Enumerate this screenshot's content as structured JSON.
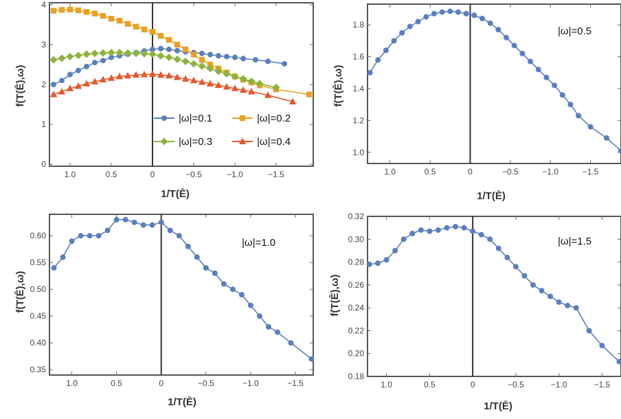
{
  "colors": {
    "blue": "#5b7fbd",
    "orange": "#e9a125",
    "green": "#8db33d",
    "red": "#e35a2d",
    "axis": "#555555",
    "zero_line": "#333333"
  },
  "chart_data": [
    {
      "type": "line",
      "panel": "top-left",
      "xlabel": "1/T(Ē)",
      "ylabel": "f(T(Ē),ω)",
      "x_reversed": true,
      "xlim": [
        1.25,
        -1.95
      ],
      "ylim": [
        -0.05,
        4.05
      ],
      "xticks": [
        1.0,
        0.5,
        0,
        -0.5,
        -1.0,
        -1.5
      ],
      "xtick_labels": [
        "1.0",
        "0.5",
        "0",
        "−0.5",
        "−1.0",
        "−1.5"
      ],
      "yticks": [
        0,
        1,
        2,
        3,
        4
      ],
      "ytick_labels": [
        "0",
        "1",
        "2",
        "3",
        "4"
      ],
      "legend_position": "bottom-right",
      "series": [
        {
          "name": "|ω|=0.1",
          "color": "#5b7fbd",
          "marker": "circle",
          "x": [
            1.2,
            1.1,
            1.0,
            0.9,
            0.8,
            0.7,
            0.6,
            0.5,
            0.4,
            0.3,
            0.2,
            0.1,
            0.0,
            -0.1,
            -0.2,
            -0.3,
            -0.4,
            -0.5,
            -0.6,
            -0.7,
            -0.8,
            -0.9,
            -1.0,
            -1.1,
            -1.25,
            -1.4,
            -1.6
          ],
          "y": [
            2.0,
            2.1,
            2.25,
            2.35,
            2.45,
            2.55,
            2.6,
            2.68,
            2.72,
            2.76,
            2.8,
            2.84,
            2.88,
            2.9,
            2.88,
            2.85,
            2.82,
            2.8,
            2.78,
            2.75,
            2.72,
            2.7,
            2.68,
            2.65,
            2.62,
            2.58,
            2.52
          ]
        },
        {
          "name": "|ω|=0.2",
          "color": "#e9a125",
          "marker": "square",
          "x": [
            1.2,
            1.1,
            1.0,
            0.9,
            0.8,
            0.7,
            0.6,
            0.5,
            0.4,
            0.3,
            0.2,
            0.1,
            0.0,
            -0.1,
            -0.2,
            -0.3,
            -0.4,
            -0.5,
            -0.6,
            -0.7,
            -0.8,
            -0.9,
            -1.0,
            -1.1,
            -1.2,
            -1.3,
            -1.5,
            -1.9
          ],
          "y": [
            3.85,
            3.87,
            3.88,
            3.86,
            3.82,
            3.78,
            3.72,
            3.65,
            3.6,
            3.52,
            3.45,
            3.38,
            3.32,
            3.22,
            3.12,
            3.0,
            2.88,
            2.75,
            2.62,
            2.5,
            2.4,
            2.3,
            2.2,
            2.12,
            2.05,
            1.98,
            1.88,
            1.75
          ]
        },
        {
          "name": "|ω|=0.3",
          "color": "#8db33d",
          "marker": "diamond",
          "x": [
            1.2,
            1.1,
            1.0,
            0.9,
            0.8,
            0.7,
            0.6,
            0.5,
            0.4,
            0.3,
            0.2,
            0.1,
            0.0,
            -0.1,
            -0.2,
            -0.3,
            -0.4,
            -0.5,
            -0.6,
            -0.7,
            -0.8,
            -0.9,
            -1.0,
            -1.1,
            -1.2,
            -1.3,
            -1.5
          ],
          "y": [
            2.62,
            2.66,
            2.7,
            2.73,
            2.76,
            2.78,
            2.79,
            2.8,
            2.8,
            2.79,
            2.78,
            2.77,
            2.76,
            2.72,
            2.68,
            2.63,
            2.58,
            2.52,
            2.46,
            2.4,
            2.33,
            2.27,
            2.2,
            2.14,
            2.08,
            2.02,
            1.93
          ]
        },
        {
          "name": "|ω|=0.4",
          "color": "#e35a2d",
          "marker": "triangle",
          "x": [
            1.2,
            1.1,
            1.0,
            0.9,
            0.8,
            0.7,
            0.6,
            0.5,
            0.4,
            0.3,
            0.2,
            0.1,
            0.0,
            -0.1,
            -0.2,
            -0.3,
            -0.4,
            -0.5,
            -0.6,
            -0.7,
            -0.8,
            -0.9,
            -1.0,
            -1.1,
            -1.2,
            -1.4,
            -1.7
          ],
          "y": [
            1.75,
            1.82,
            1.9,
            1.96,
            2.02,
            2.07,
            2.12,
            2.16,
            2.2,
            2.22,
            2.24,
            2.25,
            2.26,
            2.24,
            2.22,
            2.18,
            2.14,
            2.1,
            2.06,
            2.02,
            1.98,
            1.94,
            1.9,
            1.86,
            1.82,
            1.73,
            1.57
          ]
        }
      ]
    },
    {
      "type": "line",
      "panel": "top-right",
      "xlabel": "1/T(Ē)",
      "ylabel": "f(T(Ē),ω)",
      "annotation": "|ω|=0.5",
      "x_reversed": true,
      "xlim": [
        1.28,
        -1.88
      ],
      "ylim": [
        0.93,
        1.93
      ],
      "xticks": [
        1.0,
        0.5,
        0,
        -0.5,
        -1.0,
        -1.5
      ],
      "xtick_labels": [
        "1.0",
        "0.5",
        "0",
        "−0.5",
        "−1.0",
        "−1.5"
      ],
      "yticks": [
        1.0,
        1.2,
        1.4,
        1.6,
        1.8
      ],
      "ytick_labels": [
        "1.0",
        "1.2",
        "1.4",
        "1.6",
        "1.8"
      ],
      "series": [
        {
          "color": "#5b7fbd",
          "marker": "circle",
          "x": [
            1.25,
            1.15,
            1.05,
            0.95,
            0.85,
            0.75,
            0.65,
            0.55,
            0.45,
            0.35,
            0.25,
            0.15,
            0.05,
            -0.05,
            -0.15,
            -0.25,
            -0.35,
            -0.45,
            -0.55,
            -0.65,
            -0.75,
            -0.85,
            -0.95,
            -1.05,
            -1.15,
            -1.25,
            -1.35,
            -1.5,
            -1.7,
            -1.88
          ],
          "y": [
            1.5,
            1.58,
            1.64,
            1.7,
            1.75,
            1.79,
            1.82,
            1.85,
            1.87,
            1.88,
            1.885,
            1.88,
            1.87,
            1.86,
            1.84,
            1.81,
            1.77,
            1.72,
            1.67,
            1.62,
            1.57,
            1.52,
            1.47,
            1.42,
            1.36,
            1.3,
            1.23,
            1.16,
            1.09,
            1.01
          ]
        }
      ]
    },
    {
      "type": "line",
      "panel": "bottom-left",
      "xlabel": "1/T(Ē)",
      "ylabel": "f(T(Ē),ω)",
      "annotation": "|ω|=1.0",
      "x_reversed": true,
      "xlim": [
        1.25,
        -1.7
      ],
      "ylim": [
        0.34,
        0.64
      ],
      "xticks": [
        1.0,
        0.5,
        0,
        -0.5,
        -1.0,
        -1.5
      ],
      "xtick_labels": [
        "1.0",
        "0.5",
        "0",
        "−0.5",
        "−1.0",
        "−1.5"
      ],
      "yticks": [
        0.35,
        0.4,
        0.45,
        0.5,
        0.55,
        0.6
      ],
      "ytick_labels": [
        "0.35",
        "0.40",
        "0.45",
        "0.50",
        "0.55",
        "0.60"
      ],
      "series": [
        {
          "color": "#5b7fbd",
          "marker": "circle",
          "x": [
            1.2,
            1.1,
            1.0,
            0.9,
            0.8,
            0.7,
            0.6,
            0.5,
            0.4,
            0.3,
            0.2,
            0.1,
            0.0,
            -0.1,
            -0.2,
            -0.3,
            -0.4,
            -0.5,
            -0.6,
            -0.7,
            -0.8,
            -0.9,
            -1.0,
            -1.1,
            -1.2,
            -1.3,
            -1.45,
            -1.68
          ],
          "y": [
            0.54,
            0.56,
            0.59,
            0.6,
            0.6,
            0.6,
            0.61,
            0.63,
            0.63,
            0.625,
            0.62,
            0.62,
            0.625,
            0.61,
            0.6,
            0.58,
            0.56,
            0.54,
            0.53,
            0.51,
            0.5,
            0.49,
            0.47,
            0.45,
            0.43,
            0.42,
            0.4,
            0.37
          ]
        }
      ]
    },
    {
      "type": "line",
      "panel": "bottom-right",
      "xlabel": "1/T(Ē)",
      "ylabel": "f(T(Ē),ω)",
      "annotation": "|ω|=1.5",
      "x_reversed": true,
      "xlim": [
        1.22,
        -1.72
      ],
      "ylim": [
        0.18,
        0.32
      ],
      "xticks": [
        1.0,
        0.5,
        0,
        -0.5,
        -1.0,
        -1.5
      ],
      "xtick_labels": [
        "1.0",
        "0.5",
        "0",
        "−0.5",
        "−1.0",
        "−1.5"
      ],
      "yticks": [
        0.18,
        0.2,
        0.22,
        0.24,
        0.26,
        0.28,
        0.3,
        0.32
      ],
      "ytick_labels": [
        "0.18",
        "0.20",
        "0.22",
        "0.24",
        "0.26",
        "0.28",
        "0.30",
        "0.32"
      ],
      "series": [
        {
          "color": "#5b7fbd",
          "marker": "circle",
          "x": [
            1.2,
            1.1,
            1.0,
            0.9,
            0.8,
            0.7,
            0.6,
            0.5,
            0.4,
            0.3,
            0.2,
            0.1,
            0.0,
            -0.1,
            -0.2,
            -0.3,
            -0.4,
            -0.5,
            -0.6,
            -0.7,
            -0.8,
            -0.9,
            -1.0,
            -1.1,
            -1.2,
            -1.35,
            -1.5,
            -1.7
          ],
          "y": [
            0.278,
            0.279,
            0.282,
            0.29,
            0.3,
            0.305,
            0.308,
            0.307,
            0.308,
            0.31,
            0.311,
            0.31,
            0.307,
            0.304,
            0.3,
            0.292,
            0.284,
            0.276,
            0.268,
            0.26,
            0.255,
            0.25,
            0.245,
            0.242,
            0.24,
            0.22,
            0.207,
            0.193
          ]
        }
      ]
    }
  ]
}
